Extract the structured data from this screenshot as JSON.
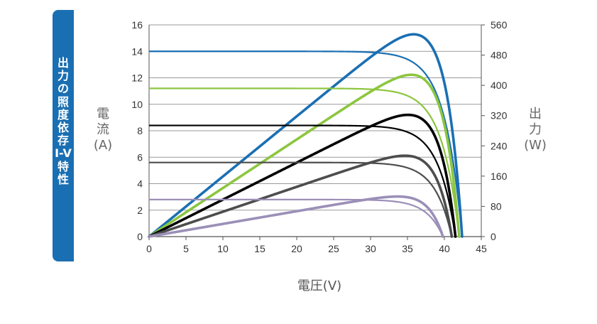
{
  "sidebar": {
    "chars": [
      "出",
      "力",
      "の",
      "照",
      "度",
      "依",
      "存",
      "I-V",
      "特",
      "性"
    ]
  },
  "left_axis_label": {
    "chars": [
      "電",
      "流",
      "(A)"
    ]
  },
  "right_axis_label": {
    "chars": [
      "出",
      "力",
      "(W)"
    ]
  },
  "x_axis_label": "電圧(V)",
  "chart_data": {
    "type": "line",
    "x_range": [
      0,
      45
    ],
    "x_ticks": [
      "0",
      "5",
      "10",
      "15",
      "20",
      "25",
      "30",
      "35",
      "40",
      "45"
    ],
    "y_left_range": [
      0,
      16
    ],
    "y_left_ticks": [
      "0",
      "2",
      "4",
      "6",
      "8",
      "10",
      "12",
      "14",
      "16"
    ],
    "y_right_range": [
      0,
      560
    ],
    "y_right_ticks": [
      "0",
      "80",
      "160",
      "240",
      "320",
      "400",
      "480",
      "560"
    ],
    "grid": true,
    "series": [
      {
        "color": "#1a6fb3",
        "isc": 14.0,
        "voc": 42.4,
        "pmax": 535
      },
      {
        "color": "#8cc63f",
        "isc": 11.2,
        "voc": 42.0,
        "pmax": 428
      },
      {
        "color": "#000000",
        "isc": 8.4,
        "voc": 41.5,
        "pmax": 322
      },
      {
        "color": "#4d4d4d",
        "isc": 5.6,
        "voc": 41.0,
        "pmax": 214
      },
      {
        "color": "#9b8fb8",
        "isc": 2.8,
        "voc": 39.8,
        "pmax": 106
      }
    ]
  }
}
